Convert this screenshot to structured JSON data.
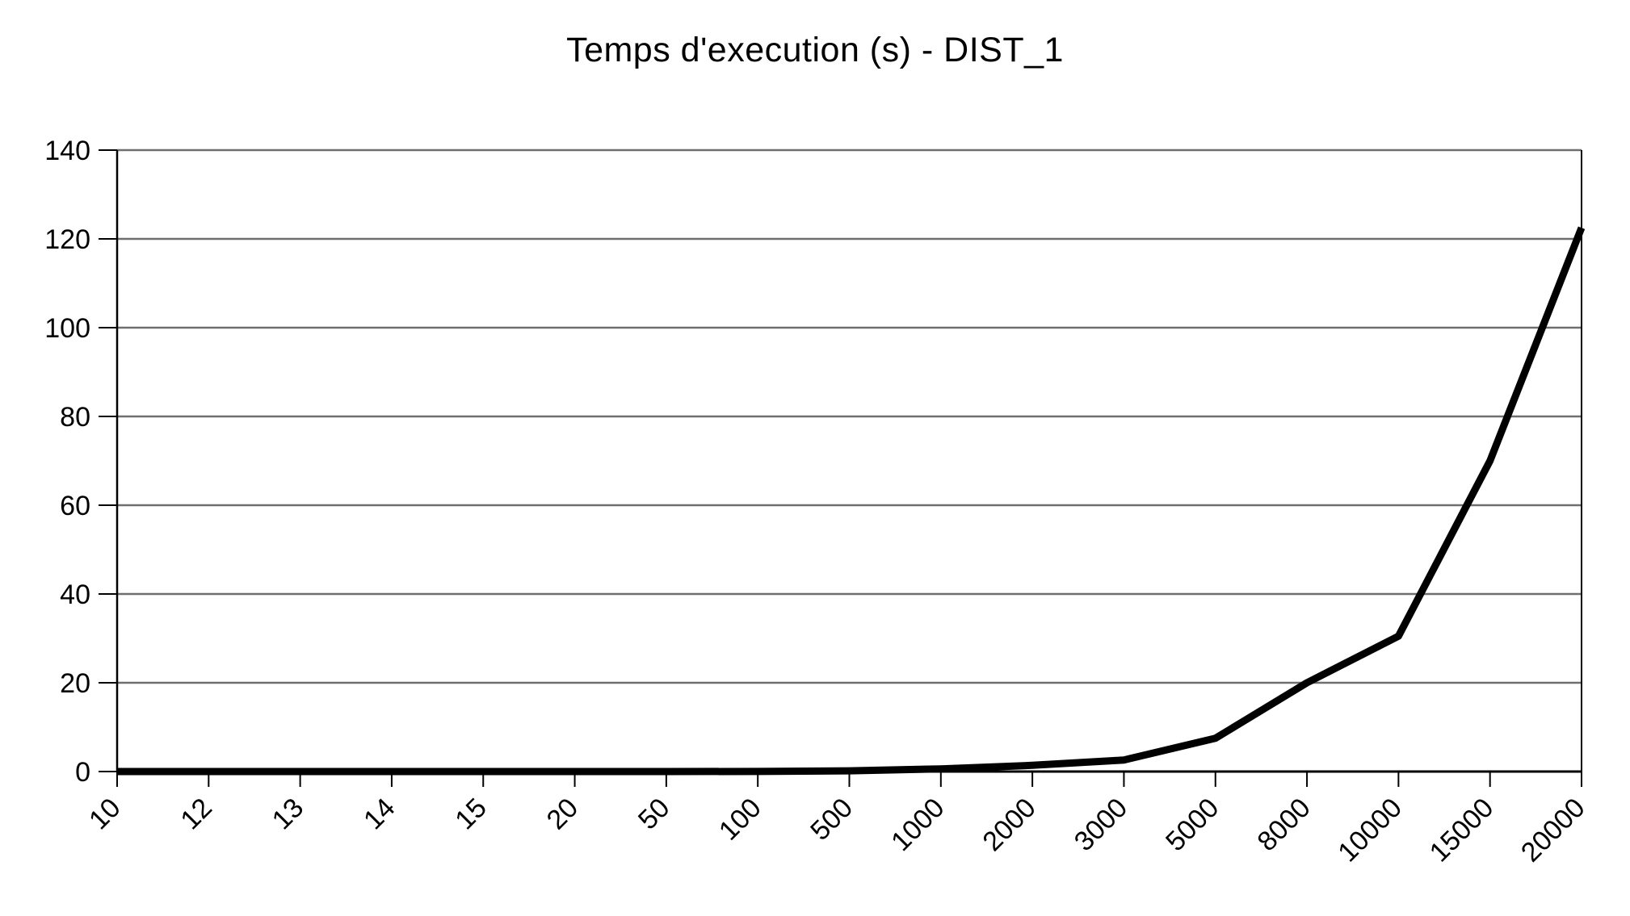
{
  "chart_data": {
    "type": "line",
    "title": "Temps d'execution (s) - DIST_1",
    "categories": [
      "10",
      "12",
      "13",
      "14",
      "15",
      "20",
      "50",
      "100",
      "500",
      "1000",
      "2000",
      "3000",
      "5000",
      "8000",
      "10000",
      "15000",
      "20000"
    ],
    "values": [
      0,
      0,
      0,
      0,
      0,
      0,
      0,
      0.02,
      0.15,
      0.6,
      1.4,
      2.6,
      7.5,
      20,
      30.5,
      70,
      122.5
    ],
    "xlabel": "",
    "ylabel": "",
    "ylim": [
      0,
      140
    ],
    "yticks": [
      0,
      20,
      40,
      60,
      80,
      100,
      120,
      140
    ],
    "grid": true,
    "legend": "none",
    "x_label_rotation_deg": 45
  },
  "colors": {
    "line": "#000000",
    "grid": "#6f6f6f",
    "axis": "#000000",
    "text": "#000000",
    "background": "#ffffff"
  }
}
